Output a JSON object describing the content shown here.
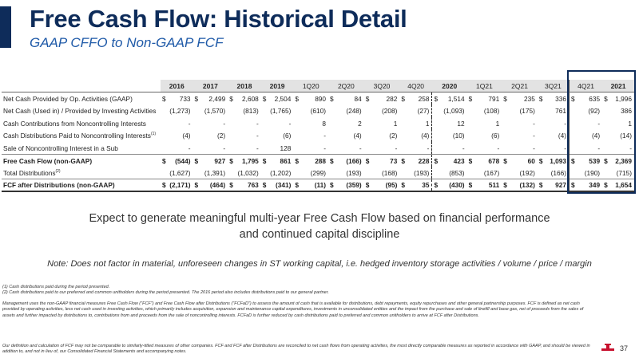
{
  "header": {
    "title": "Free Cash Flow: Historical Detail",
    "subtitle": "GAAP CFFO to Non-GAAP FCF"
  },
  "table": {
    "columns": [
      "2016",
      "2017",
      "2018",
      "2019",
      "1Q20",
      "2Q20",
      "3Q20",
      "4Q20",
      "2020",
      "1Q21",
      "2Q21",
      "3Q21",
      "4Q21",
      "2021"
    ],
    "rows": [
      {
        "label": "Net Cash Provided by Op. Activities (GAAP)",
        "dollar": true,
        "values": [
          "733",
          "2,499",
          "2,608",
          "2,504",
          "890",
          "84",
          "282",
          "258",
          "1,514",
          "791",
          "235",
          "336",
          "635",
          "1,996"
        ]
      },
      {
        "label": "Net Cash (Used in) / Provided by Investing Activities",
        "values": [
          "(1,273)",
          "(1,570)",
          "(813)",
          "(1,765)",
          "(610)",
          "(248)",
          "(208)",
          "(27)",
          "(1,093)",
          "(108)",
          "(175)",
          "761",
          "(92)",
          "386"
        ]
      },
      {
        "label": "Cash Contributions from Noncontrolling Interests",
        "values": [
          "-",
          "-",
          "-",
          "-",
          "8",
          "2",
          "1",
          "1",
          "12",
          "1",
          "-",
          "-",
          "-",
          "1"
        ]
      },
      {
        "label": "Cash Distributions Paid to Noncontrolling Interests",
        "sup": "(1)",
        "values": [
          "(4)",
          "(2)",
          "-",
          "(6)",
          "-",
          "(4)",
          "(2)",
          "(4)",
          "(10)",
          "(6)",
          "-",
          "(4)",
          "(4)",
          "(14)"
        ]
      },
      {
        "label": "Sale of Noncontrolling Interest in a Sub",
        "values": [
          "-",
          "-",
          "-",
          "128",
          "-",
          "-",
          "-",
          "-",
          "-",
          "-",
          "-",
          "-",
          "-",
          "-"
        ]
      },
      {
        "label": "Free Cash Flow (non-GAAP)",
        "bold": true,
        "dollar": true,
        "values": [
          "(544)",
          "927",
          "1,795",
          "861",
          "288",
          "(166)",
          "73",
          "228",
          "423",
          "678",
          "60",
          "1,093",
          "539",
          "2,369"
        ]
      },
      {
        "label": "Total Distributions",
        "sup": "(2)",
        "values": [
          "(1,627)",
          "(1,391)",
          "(1,032)",
          "(1,202)",
          "(299)",
          "(193)",
          "(168)",
          "(193)",
          "(853)",
          "(167)",
          "(192)",
          "(166)",
          "(190)",
          "(715)"
        ]
      },
      {
        "label": "FCF after Distributions (non-GAAP)",
        "bold": true,
        "dollar": true,
        "values": [
          "(2,171)",
          "(464)",
          "763",
          "(341)",
          "(11)",
          "(359)",
          "(95)",
          "35",
          "(430)",
          "511",
          "(132)",
          "927",
          "349",
          "1,654"
        ]
      }
    ]
  },
  "message": {
    "line1": "Expect to generate meaningful multi-year Free Cash Flow based on financial performance",
    "line2": "and continued capital discipline"
  },
  "note": "Note: Does not factor in material, unforeseen changes in ST working capital, i.e. hedged inventory storage activities / volume / price / margin",
  "footnotes": {
    "fn1": "(1) Cash distributions paid during the period presented.",
    "fn2": "(2) Cash distributions paid to our preferred and common unitholders during the period presented.  The 2016 period also includes distributions paid to our general partner.",
    "fn3": "Management uses the non-GAAP financial measures Free Cash Flow (\"FCF\") and Free Cash Flow after Distributions (\"FCFaD\") to assess the amount of cash that is available for distributions, debt repayments, equity repurchases and other general partnership purposes. FCF is defined as net cash provided by operating activities, less net cash used in investing activities, which primarily includes acquisition, expansion and maintenance capital expenditures, investments in unconsolidated entities and the impact from the purchase and sale of linefill and base gas, net of proceeds from the sales of assets and further impacted by distributions to, contributions from and proceeds from the sale of noncontrolling interests. FCFaD is further reduced by cash distributions paid to preferred and common unitholders to arrive at FCF after Distributions.",
    "fn4": "Our definition and calculation of FCF may not be comparable to similarly-titled measures of other companies. FCF and FCF after Distributions are reconciled to net cash flows from operating activities, the most directly comparable measures as reported in accordance with GAAP, and should be viewed in addition to, and not in lieu of, our Consolidated Financial Statements and accompanying notes."
  },
  "page_number": "37",
  "colors": {
    "brand": "#0e2c5a",
    "subtitle": "#1f5aa8",
    "logo_red": "#c8102e"
  },
  "icons": {
    "logo": "company-logo-icon"
  }
}
